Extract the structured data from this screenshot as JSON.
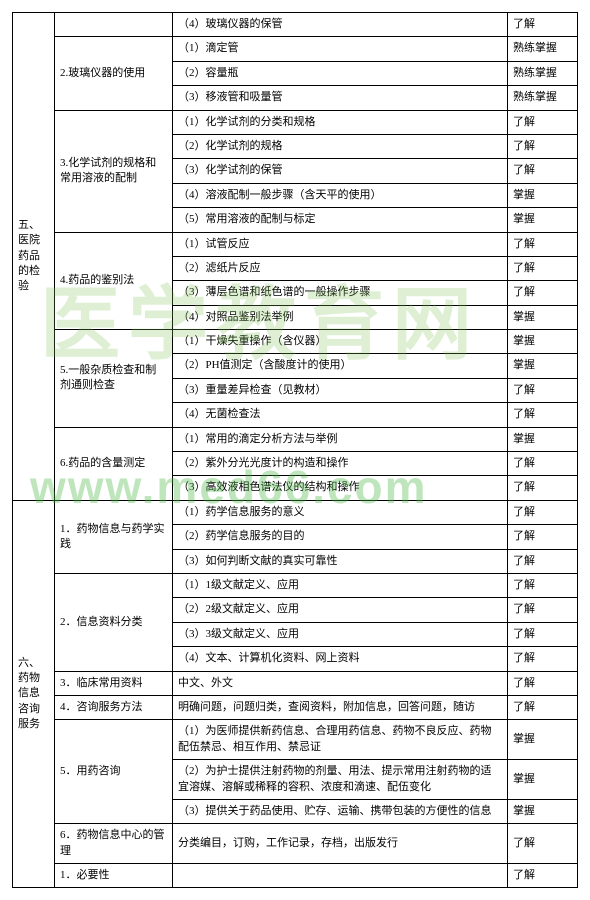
{
  "sections": [
    {
      "cat": "五、医院药品的检验",
      "groups": [
        {
          "name": "",
          "rows": [
            [
              "（4）玻璃仪器的保管",
              "了解"
            ]
          ]
        },
        {
          "name": "2.玻璃仪器的使用",
          "rows": [
            [
              "（1）滴定管",
              "熟练掌握"
            ],
            [
              "（2）容量瓶",
              "熟练掌握"
            ],
            [
              "（3）移液管和吸量管",
              "熟练掌握"
            ]
          ]
        },
        {
          "name": "3.化学试剂的规格和常用溶液的配制",
          "rows": [
            [
              "（1）化学试剂的分类和规格",
              "了解"
            ],
            [
              "（2）化学试剂的规格",
              "了解"
            ],
            [
              "（3）化学试剂的保管",
              "了解"
            ],
            [
              "（4）溶液配制一般步骤（含天平的使用）",
              "掌握"
            ],
            [
              "（5）常用溶液的配制与标定",
              "掌握"
            ]
          ]
        },
        {
          "name": "4.药品的鉴别法",
          "rows": [
            [
              "（1）试管反应",
              "了解"
            ],
            [
              "（2）滤纸片反应",
              "了解"
            ],
            [
              "（3）薄层色谱和纸色谱的一般操作步骤",
              "了解"
            ],
            [
              "（4）对照品鉴别法举例",
              "掌握"
            ]
          ]
        },
        {
          "name": "5.一般杂质检查和制剂通则检查",
          "rows": [
            [
              "（1）干燥失重操作（含仪器）",
              "掌握"
            ],
            [
              "（2）PH值测定（含酸度计的使用）",
              "掌握"
            ],
            [
              "（3）重量差异检查（见教材）",
              "了解"
            ],
            [
              "（4）无菌检查法",
              "了解"
            ]
          ]
        },
        {
          "name": "6.药品的含量测定",
          "rows": [
            [
              "（1）常用的滴定分析方法与举例",
              "掌握"
            ],
            [
              "（2）紫外分光光度计的构造和操作",
              "了解"
            ],
            [
              "（3）高效液相色谱法仪的结构和操作",
              "了解"
            ]
          ]
        }
      ]
    },
    {
      "cat": "六、药物信息咨询服务",
      "groups": [
        {
          "name": "1．药物信息与药学实践",
          "rows": [
            [
              "（1）药学信息服务的意义",
              "了解"
            ],
            [
              "（2）药学信息服务的目的",
              "了解"
            ],
            [
              "（3）如何判断文献的真实可靠性",
              "了解"
            ]
          ]
        },
        {
          "name": "2．信息资料分类",
          "rows": [
            [
              "（1）1级文献定义、应用",
              "了解"
            ],
            [
              "（2）2级文献定义、应用",
              "了解"
            ],
            [
              "（3）3级文献定义、应用",
              "了解"
            ],
            [
              "（4）文本、计算机化资料、网上资料",
              "了解"
            ]
          ]
        },
        {
          "name": "3．临床常用资料",
          "rows": [
            [
              "中文、外文",
              "了解"
            ]
          ]
        },
        {
          "name": "4．咨询服务方法",
          "rows": [
            [
              "明确问题，问题归类，查阅资料，附加信息，回答问题，随访",
              "了解"
            ]
          ]
        },
        {
          "name": "5．用药咨询",
          "rows": [
            [
              "（1）为医师提供新药信息、合理用药信息、药物不良反应、药物配伍禁忌、相互作用、禁忌证",
              "掌握"
            ],
            [
              "（2）为护士提供注射药物的剂量、用法、提示常用注射药物的适宜溶媒、溶解或稀释的容积、浓度和滴速、配伍变化",
              "掌握"
            ],
            [
              "（3）提供关于药品使用、贮存、运输、携带包装的方便性的信息",
              "掌握"
            ]
          ]
        },
        {
          "name": "6．药物信息中心的管理",
          "rows": [
            [
              "分类编目，订购，工作记录，存档，出版发行",
              "了解"
            ]
          ]
        },
        {
          "name": "1．必要性",
          "rows": [
            [
              "",
              "了解"
            ]
          ]
        }
      ]
    }
  ],
  "watermark1": "医学教育网",
  "watermark2": "www.med66.com"
}
